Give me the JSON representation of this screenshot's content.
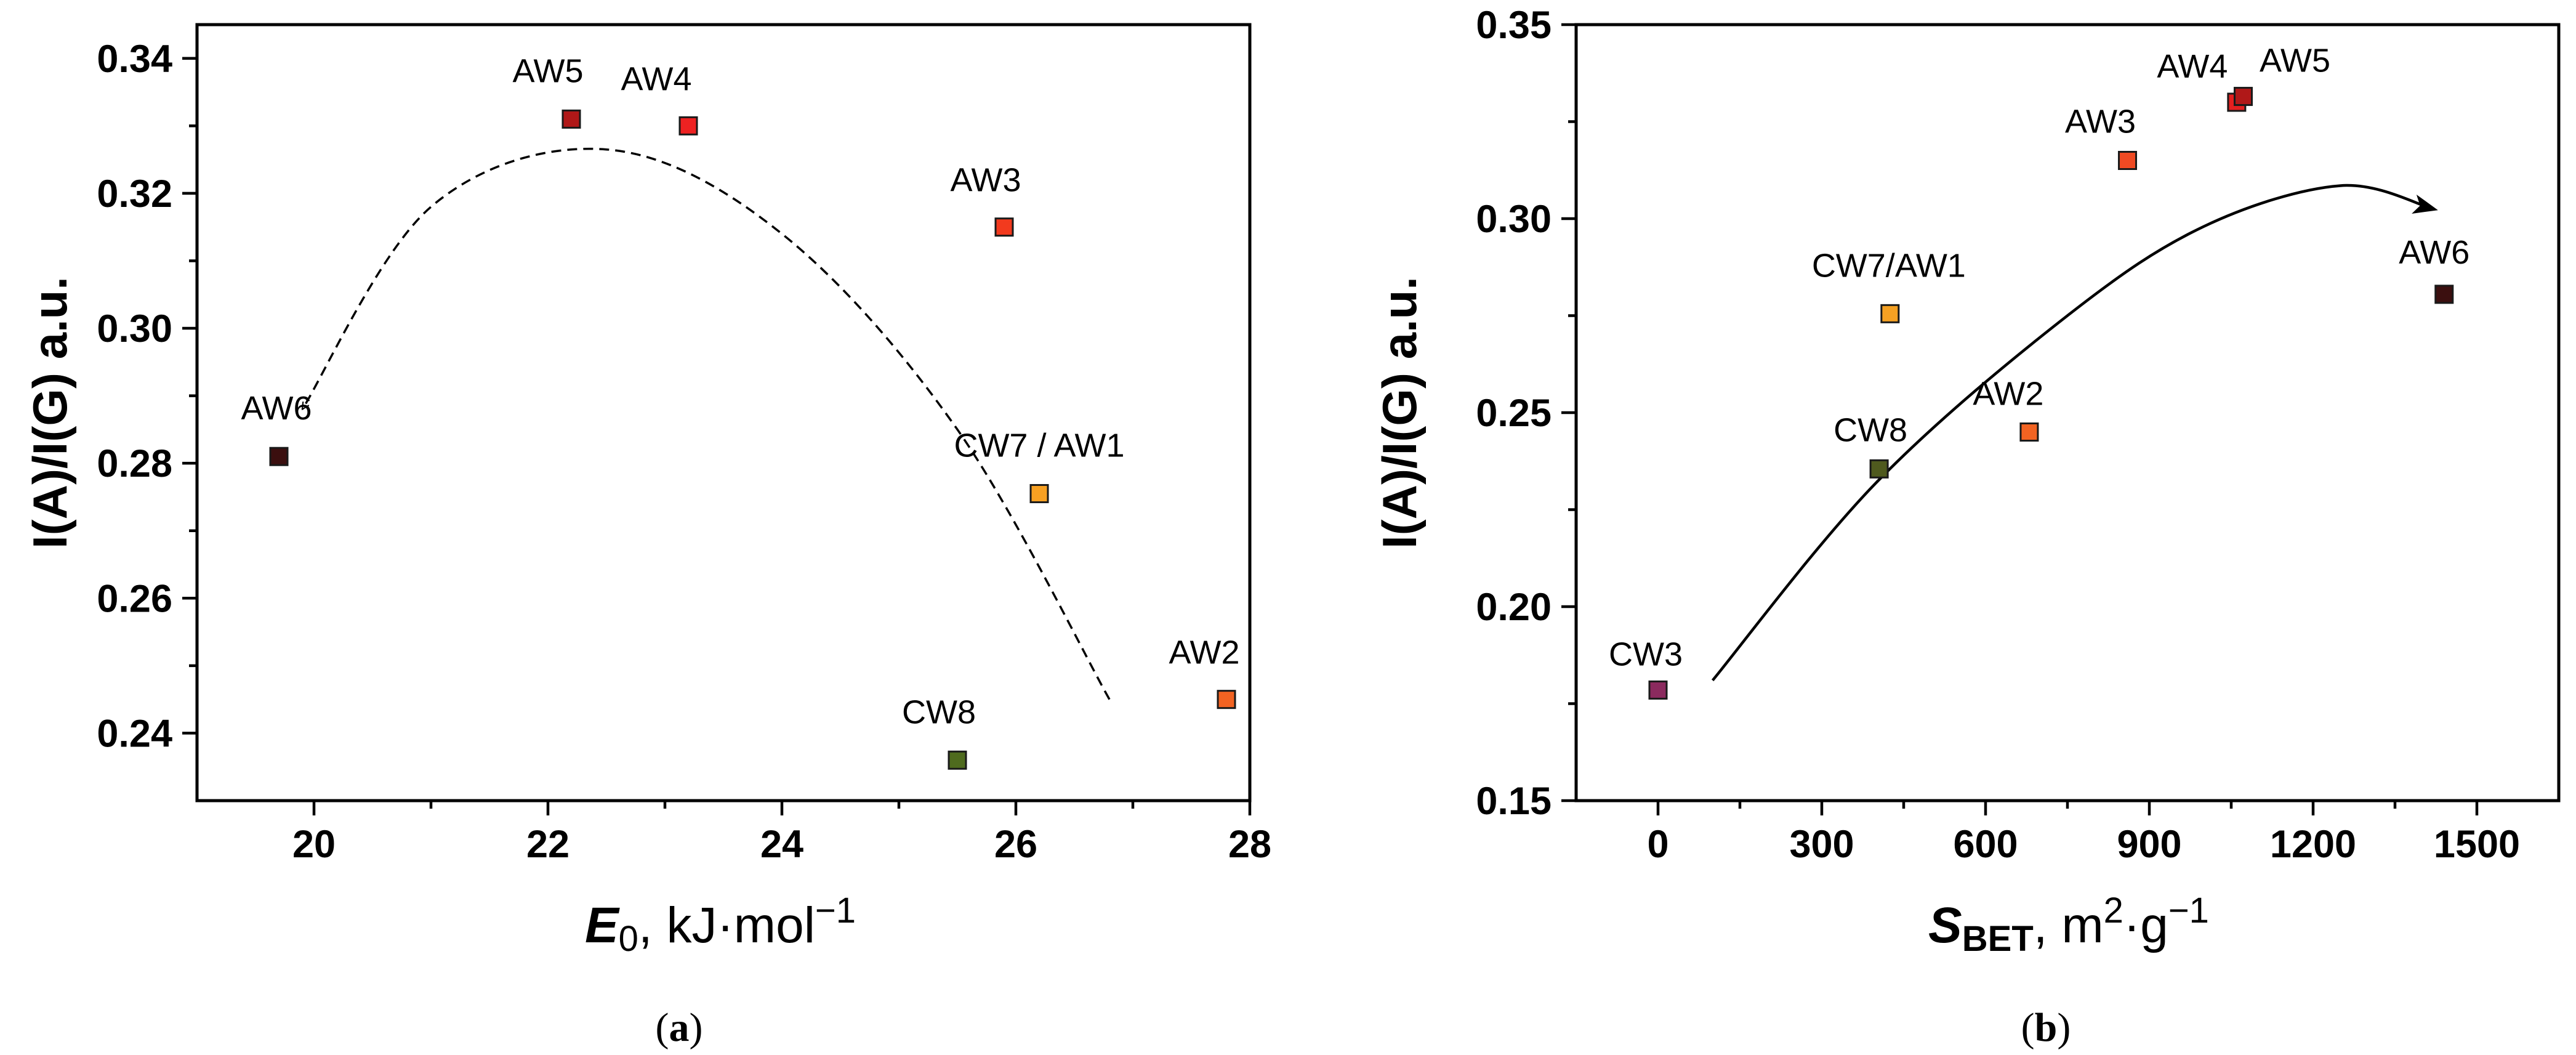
{
  "chart_data": [
    {
      "type": "scatter",
      "panel": "a",
      "caption": {
        "open": "(",
        "letter": "a",
        "close": ")"
      },
      "ylabel": "I(A)/I(G) a.u.",
      "xlabel": {
        "symbol": "E",
        "sub": "0",
        "rest": ", kJ·mol",
        "sup": "−1"
      },
      "xlim": [
        19,
        28
      ],
      "ylim": [
        0.23,
        0.345
      ],
      "xticks": [
        20,
        22,
        24,
        26,
        28
      ],
      "xtick_labels": [
        "20",
        "22",
        "24",
        "26",
        "28"
      ],
      "yticks": [
        0.24,
        0.26,
        0.28,
        0.3,
        0.32,
        0.34
      ],
      "ytick_labels": [
        "0.24",
        "0.26",
        "0.28",
        "0.30",
        "0.32",
        "0.34"
      ],
      "grid": false,
      "points": [
        {
          "label": "AW6",
          "x": 19.7,
          "y": 0.281,
          "color": "#3b0f0f"
        },
        {
          "label": "AW5",
          "x": 22.2,
          "y": 0.331,
          "color": "#b01818"
        },
        {
          "label": "AW4",
          "x": 23.2,
          "y": 0.33,
          "color": "#ee2222"
        },
        {
          "label": "AW3",
          "x": 25.9,
          "y": 0.315,
          "color": "#f23a1e"
        },
        {
          "label": "CW7 / AW1",
          "x": 26.2,
          "y": 0.2755,
          "color": "#f7a022"
        },
        {
          "label": "AW2",
          "x": 27.8,
          "y": 0.245,
          "color": "#f26322"
        },
        {
          "label": "CW8",
          "x": 25.5,
          "y": 0.236,
          "color": "#4f6b1e"
        }
      ],
      "trend": {
        "style": "dashed",
        "arrow_at": "start",
        "points": [
          [
            26.8,
            0.245
          ],
          [
            25.5,
            0.285
          ],
          [
            24.0,
            0.314
          ],
          [
            22.5,
            0.3265
          ],
          [
            21.0,
            0.318
          ],
          [
            19.9,
            0.288
          ]
        ]
      }
    },
    {
      "type": "scatter",
      "panel": "b",
      "caption": {
        "open": "(",
        "letter": "b",
        "close": ")"
      },
      "ylabel": "I(A)/I(G) a.u.",
      "xlabel": {
        "symbol": "S",
        "sub": "BET",
        "rest": ", m",
        "sup": "2",
        "rest2": "·g",
        "sup2": "−1"
      },
      "xlim": [
        -150,
        1650
      ],
      "ylim": [
        0.15,
        0.35
      ],
      "xticks": [
        0,
        300,
        600,
        900,
        1200,
        1500
      ],
      "xtick_labels": [
        "0",
        "300",
        "600",
        "900",
        "1200",
        "1500"
      ],
      "yticks": [
        0.15,
        0.2,
        0.25,
        0.3,
        0.35
      ],
      "ytick_labels": [
        "0.15",
        "0.20",
        "0.25",
        "0.30",
        "0.35"
      ],
      "grid": false,
      "points": [
        {
          "label": "CW3",
          "x": 0,
          "y": 0.1785,
          "color": "#8b2a5e"
        },
        {
          "label": "CW8",
          "x": 405,
          "y": 0.2355,
          "color": "#4f5a1e"
        },
        {
          "label": "CW7/AW1",
          "x": 425,
          "y": 0.2755,
          "color": "#f5a123"
        },
        {
          "label": "AW2",
          "x": 680,
          "y": 0.245,
          "color": "#f26322"
        },
        {
          "label": "AW3",
          "x": 860,
          "y": 0.315,
          "color": "#ef4a23"
        },
        {
          "label": "AW4",
          "x": 1060,
          "y": 0.33,
          "color": "#e32020"
        },
        {
          "label": "AW5",
          "x": 1072,
          "y": 0.3315,
          "color": "#b01818"
        },
        {
          "label": "AW6",
          "x": 1440,
          "y": 0.2805,
          "color": "#3b0f0f"
        }
      ],
      "trend": {
        "style": "solid",
        "arrow_at": "end",
        "points": [
          [
            100,
            0.181
          ],
          [
            400,
            0.232
          ],
          [
            750,
            0.275
          ],
          [
            1000,
            0.298
          ],
          [
            1250,
            0.3085
          ],
          [
            1420,
            0.3025
          ]
        ]
      }
    }
  ]
}
